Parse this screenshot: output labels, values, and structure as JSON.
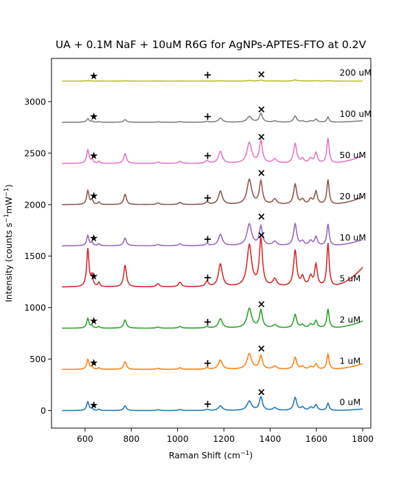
{
  "chart_data": {
    "type": "line",
    "title": "UA + 0.1M NaF + 10uM R6G for AgNPs-APTES-FTO at 0.2V",
    "xlabel": "Raman Shift (cm",
    "xlabel_sup": "−1",
    "xlabel_tail": ")",
    "ylabel": "Intensity (counts s",
    "ylabel_sup1": "−1",
    "ylabel_mid": "mW",
    "ylabel_sup2": "−1",
    "ylabel_tail": ")",
    "xlim": [
      455,
      1835
    ],
    "ylim": [
      -170,
      3420
    ],
    "x_ticks": [
      600,
      800,
      1000,
      1200,
      1400,
      1600,
      1800
    ],
    "x_tick_labels": [
      "600",
      "800",
      "1000",
      "1200",
      "1400",
      "1600",
      "1800"
    ],
    "y_ticks": [
      0,
      500,
      1000,
      1500,
      2000,
      2500,
      3000
    ],
    "y_tick_labels": [
      "0",
      "500",
      "1000",
      "1500",
      "2000",
      "2500",
      "3000"
    ],
    "grid": false,
    "label_x": 1700,
    "peak_positions": [
      612,
      630,
      660,
      773,
      915,
      1010,
      1127,
      1185,
      1310,
      1360,
      1420,
      1508,
      1540,
      1575,
      1598,
      1650
    ],
    "markers": {
      "star": {
        "symbol": "★",
        "x": 638
      },
      "plus": {
        "symbol": "+",
        "x": 1130
      },
      "cross": {
        "symbol": "×",
        "x": 1362
      }
    },
    "series": [
      {
        "name": "0 uM",
        "color": "#1f77b4",
        "offset": 0,
        "end": 15,
        "peak_heights": [
          85,
          20,
          12,
          45,
          8,
          10,
          12,
          45,
          90,
          130,
          25,
          125,
          30,
          30,
          55,
          70
        ],
        "marker_y": {
          "star": 55,
          "plus": 65,
          "cross": 180
        }
      },
      {
        "name": "1 uM",
        "color": "#ff7f0e",
        "offset": 400,
        "end": 455,
        "peak_heights": [
          95,
          25,
          15,
          75,
          10,
          15,
          15,
          90,
          150,
          130,
          30,
          115,
          25,
          25,
          50,
          145
        ],
        "marker_y": {
          "star": 465,
          "plus": 460,
          "cross": 605
        }
      },
      {
        "name": "2 uM",
        "color": "#2ca02c",
        "offset": 800,
        "end": 870,
        "peak_heights": [
          95,
          25,
          15,
          80,
          10,
          15,
          15,
          90,
          190,
          170,
          30,
          130,
          30,
          35,
          70,
          185
        ],
        "marker_y": {
          "star": 870,
          "plus": 860,
          "cross": 1035
        }
      },
      {
        "name": "5 uM",
        "color": "#d62728",
        "offset": 1200,
        "end": 1390,
        "peak_heights": [
          370,
          100,
          40,
          210,
          30,
          45,
          50,
          220,
          400,
          460,
          70,
          350,
          90,
          95,
          210,
          420
        ],
        "marker_y": {
          "star": 1305,
          "plus": 1290,
          "cross": 1705
        }
      },
      {
        "name": "10 uM",
        "color": "#9467bd",
        "offset": 1600,
        "end": 1660,
        "peak_heights": [
          100,
          30,
          20,
          75,
          12,
          18,
          20,
          110,
          210,
          185,
          40,
          210,
          40,
          45,
          85,
          210
        ],
        "marker_y": {
          "star": 1675,
          "plus": 1665,
          "cross": 1885
        }
      },
      {
        "name": "20 uM",
        "color": "#8c564b",
        "offset": 2000,
        "end": 2075,
        "peak_heights": [
          135,
          45,
          25,
          100,
          15,
          20,
          25,
          130,
          240,
          220,
          50,
          195,
          45,
          50,
          125,
          240
        ],
        "marker_y": {
          "star": 2085,
          "plus": 2065,
          "cross": 2310
        }
      },
      {
        "name": "50 uM",
        "color": "#e377c2",
        "offset": 2400,
        "end": 2475,
        "peak_heights": [
          130,
          35,
          20,
          95,
          12,
          20,
          25,
          115,
          200,
          215,
          40,
          190,
          40,
          45,
          100,
          245
        ],
        "marker_y": {
          "star": 2475,
          "plus": 2475,
          "cross": 2660
        }
      },
      {
        "name": "100 uM",
        "color": "#7f7f7f",
        "offset": 2800,
        "end": 2815,
        "peak_heights": [
          35,
          10,
          6,
          25,
          4,
          6,
          8,
          40,
          55,
          85,
          12,
          60,
          10,
          12,
          30,
          50
        ],
        "marker_y": {
          "star": 2855,
          "plus": 2855,
          "cross": 2925
        }
      },
      {
        "name": "200 uM",
        "color": "#bcbd22",
        "offset": 3200,
        "end": 3200,
        "peak_heights": [
          5,
          2,
          1,
          4,
          1,
          1,
          1,
          3,
          6,
          10,
          2,
          12,
          2,
          2,
          4,
          5
        ],
        "marker_y": {
          "star": 3250,
          "plus": 3260,
          "cross": 3265
        }
      }
    ]
  }
}
